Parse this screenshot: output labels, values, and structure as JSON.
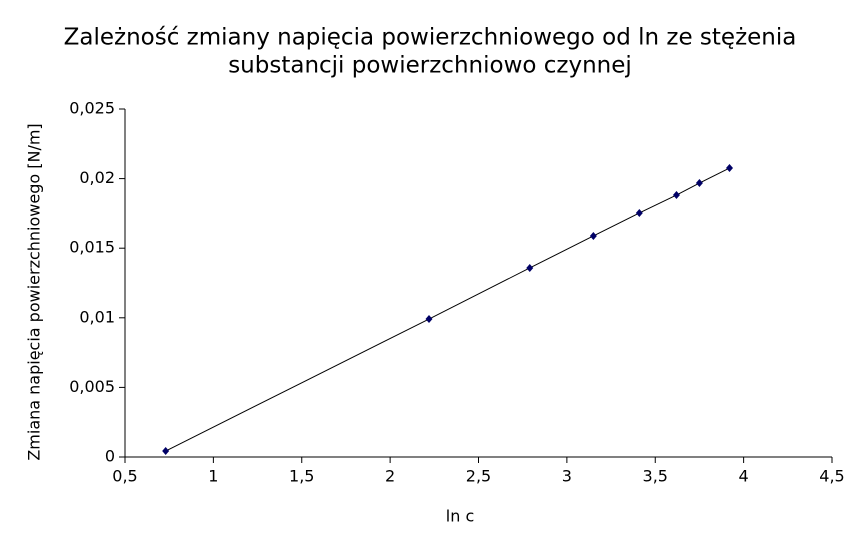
{
  "chart_data": {
    "type": "scatter",
    "title": "Zależność zmiany napięcia powierzchniowego od ln ze stężenia",
    "subtitle": "substancji powierzchniowo czynnej",
    "x_label": "ln c",
    "y_label": "Zmiana napięcia powierzchniowego [N/m]",
    "series": [
      {
        "color": "#000066",
        "line_color": "#000000",
        "x": [
          0.73,
          2.22,
          2.79,
          3.15,
          3.41,
          3.62,
          3.75,
          3.92
        ],
        "values": [
          0.00043,
          0.00991,
          0.01358,
          0.01588,
          0.01753,
          0.01882,
          0.01968,
          0.02076
        ]
      }
    ],
    "xlim": [
      0.5,
      4.5
    ],
    "xticks": [
      {
        "value": 0.5,
        "label": "0,5"
      },
      1,
      {
        "value": 1.5,
        "label": "1,5"
      },
      2,
      {
        "value": 2.5,
        "label": "2,5"
      },
      3,
      {
        "value": 3.5,
        "label": "3,5"
      },
      4,
      {
        "value": 4.5,
        "label": "4,5"
      }
    ],
    "ylim": [
      0,
      0.025
    ],
    "yticks": [
      0,
      {
        "value": 0.005,
        "label": "0,005"
      },
      {
        "value": 0.01,
        "label": "0,01"
      },
      {
        "value": 0.015,
        "label": "0,015"
      },
      {
        "value": 0.02,
        "label": "0,02"
      },
      {
        "value": 0.025,
        "label": "0,025"
      }
    ],
    "grid": false
  }
}
